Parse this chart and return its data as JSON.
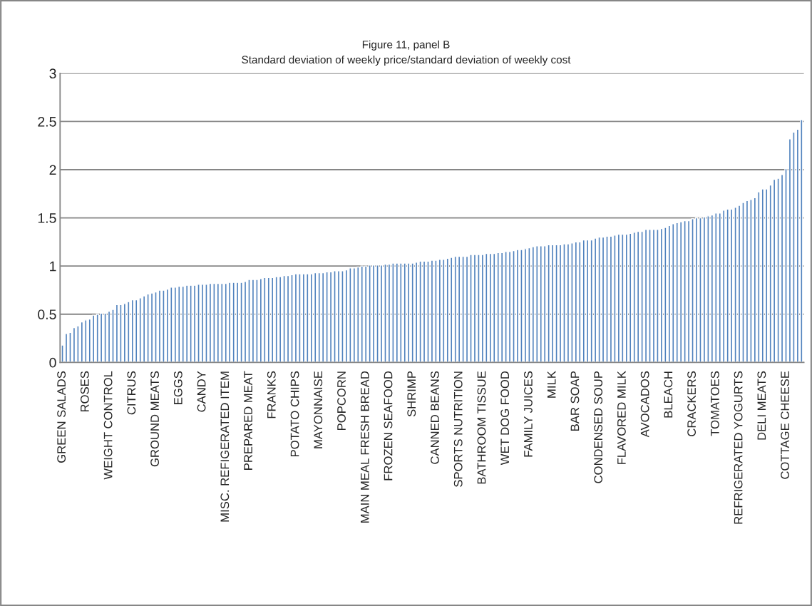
{
  "chart_data": {
    "type": "bar",
    "title": "Figure 11, panel B",
    "subtitle": "Standard deviation of weekly price/standard deviation of weekly cost",
    "categories": [
      "GREEN SALADS",
      null,
      null,
      null,
      null,
      null,
      "ROSES",
      null,
      null,
      null,
      null,
      null,
      "WEIGHT CONTROL",
      null,
      null,
      null,
      null,
      null,
      "CITRUS",
      null,
      null,
      null,
      null,
      null,
      "GROUND MEATS",
      null,
      null,
      null,
      null,
      null,
      "EGGS",
      null,
      null,
      null,
      null,
      null,
      "CANDY",
      null,
      null,
      null,
      null,
      null,
      "MISC. REFIGERATED ITEM",
      null,
      null,
      null,
      null,
      null,
      "PREPARED MEAT",
      null,
      null,
      null,
      null,
      null,
      "FRANKS",
      null,
      null,
      null,
      null,
      null,
      "POTATO CHIPS",
      null,
      null,
      null,
      null,
      null,
      "MAYONNAISE",
      null,
      null,
      null,
      null,
      null,
      "POPCORN",
      null,
      null,
      null,
      null,
      null,
      "MAIN MEAL FRESH BREAD",
      null,
      null,
      null,
      null,
      null,
      "FROZEN SEAFOOD",
      null,
      null,
      null,
      null,
      null,
      "SHRIMP",
      null,
      null,
      null,
      null,
      null,
      "CANNED BEANS",
      null,
      null,
      null,
      null,
      null,
      "SPORTS NUTRITION",
      null,
      null,
      null,
      null,
      null,
      "BATHROOM TISSUE",
      null,
      null,
      null,
      null,
      null,
      "WET DOG FOOD",
      null,
      null,
      null,
      null,
      null,
      "FAMILY JUICES",
      null,
      null,
      null,
      null,
      null,
      "MILK",
      null,
      null,
      null,
      null,
      null,
      "BAR SOAP",
      null,
      null,
      null,
      null,
      null,
      "CONDENSED SOUP",
      null,
      null,
      null,
      null,
      null,
      "FLAVORED MILK",
      null,
      null,
      null,
      null,
      null,
      "AVOCADOS",
      null,
      null,
      null,
      null,
      null,
      "BLEACH",
      null,
      null,
      null,
      null,
      null,
      "CRACKERS",
      null,
      null,
      null,
      null,
      null,
      "TOMATOES",
      null,
      null,
      null,
      null,
      null,
      "REFRIGERATED YOGURTS",
      null,
      null,
      null,
      null,
      null,
      "DELI MEATS",
      null,
      null,
      null,
      null,
      null,
      "COTTAGE CHEESE",
      null,
      null,
      null,
      null
    ],
    "values": [
      0.18,
      0.3,
      0.31,
      0.36,
      0.38,
      0.42,
      0.44,
      0.45,
      0.49,
      0.5,
      0.51,
      0.51,
      0.53,
      0.55,
      0.6,
      0.6,
      0.61,
      0.63,
      0.65,
      0.65,
      0.67,
      0.69,
      0.71,
      0.72,
      0.73,
      0.75,
      0.75,
      0.76,
      0.78,
      0.78,
      0.79,
      0.79,
      0.8,
      0.8,
      0.8,
      0.81,
      0.81,
      0.81,
      0.82,
      0.82,
      0.82,
      0.82,
      0.82,
      0.83,
      0.83,
      0.83,
      0.83,
      0.84,
      0.86,
      0.86,
      0.86,
      0.87,
      0.88,
      0.88,
      0.88,
      0.89,
      0.89,
      0.9,
      0.9,
      0.91,
      0.92,
      0.92,
      0.92,
      0.92,
      0.92,
      0.93,
      0.93,
      0.93,
      0.94,
      0.94,
      0.95,
      0.95,
      0.95,
      0.96,
      0.98,
      0.98,
      0.99,
      1.0,
      1.0,
      1.01,
      1.01,
      1.01,
      1.01,
      1.02,
      1.02,
      1.03,
      1.03,
      1.03,
      1.03,
      1.03,
      1.03,
      1.04,
      1.05,
      1.05,
      1.05,
      1.06,
      1.06,
      1.07,
      1.07,
      1.08,
      1.09,
      1.1,
      1.1,
      1.1,
      1.1,
      1.12,
      1.12,
      1.12,
      1.12,
      1.13,
      1.13,
      1.13,
      1.14,
      1.14,
      1.15,
      1.15,
      1.16,
      1.17,
      1.17,
      1.18,
      1.19,
      1.2,
      1.21,
      1.21,
      1.21,
      1.22,
      1.22,
      1.22,
      1.22,
      1.23,
      1.23,
      1.24,
      1.25,
      1.25,
      1.27,
      1.27,
      1.27,
      1.29,
      1.3,
      1.3,
      1.31,
      1.31,
      1.32,
      1.33,
      1.33,
      1.33,
      1.34,
      1.35,
      1.36,
      1.36,
      1.38,
      1.38,
      1.38,
      1.38,
      1.39,
      1.4,
      1.42,
      1.44,
      1.45,
      1.46,
      1.47,
      1.47,
      1.49,
      1.5,
      1.5,
      1.51,
      1.52,
      1.53,
      1.55,
      1.55,
      1.58,
      1.59,
      1.59,
      1.61,
      1.63,
      1.66,
      1.68,
      1.69,
      1.71,
      1.77,
      1.8,
      1.8,
      1.84,
      1.9,
      1.91,
      1.95,
      2.01,
      2.32,
      2.39,
      2.42,
      2.52
    ],
    "color": "#4f81bd",
    "ylim": [
      0,
      3
    ],
    "yticks": [
      0,
      0.5,
      1,
      1.5,
      2,
      2.5,
      3
    ],
    "grid": "y",
    "legend": false
  }
}
